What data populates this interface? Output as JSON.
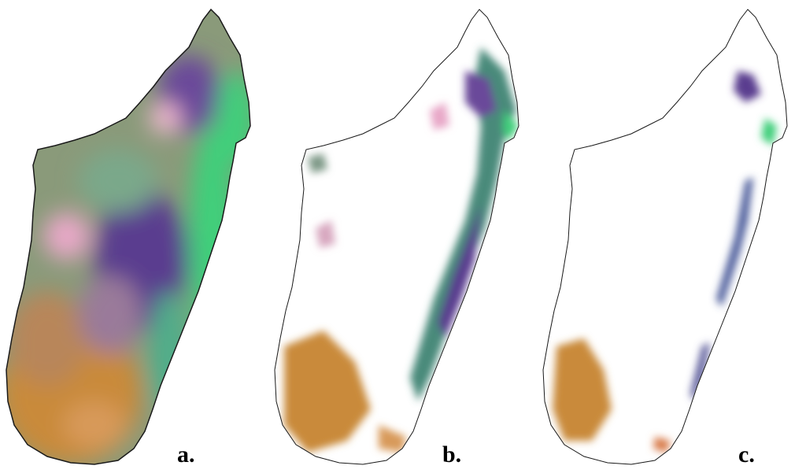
{
  "figure": {
    "panels": [
      {
        "id": "a",
        "label": "a."
      },
      {
        "id": "b",
        "label": "b."
      },
      {
        "id": "c",
        "label": "c."
      }
    ]
  },
  "colors": {
    "coast": "#1a1a1a",
    "purple": "#5a3d8f",
    "green": "#3fcf7a",
    "pink": "#e8a8c8",
    "orange": "#c98a3a",
    "olive": "#8a9a6a",
    "grey_green": "#7f9a88"
  }
}
